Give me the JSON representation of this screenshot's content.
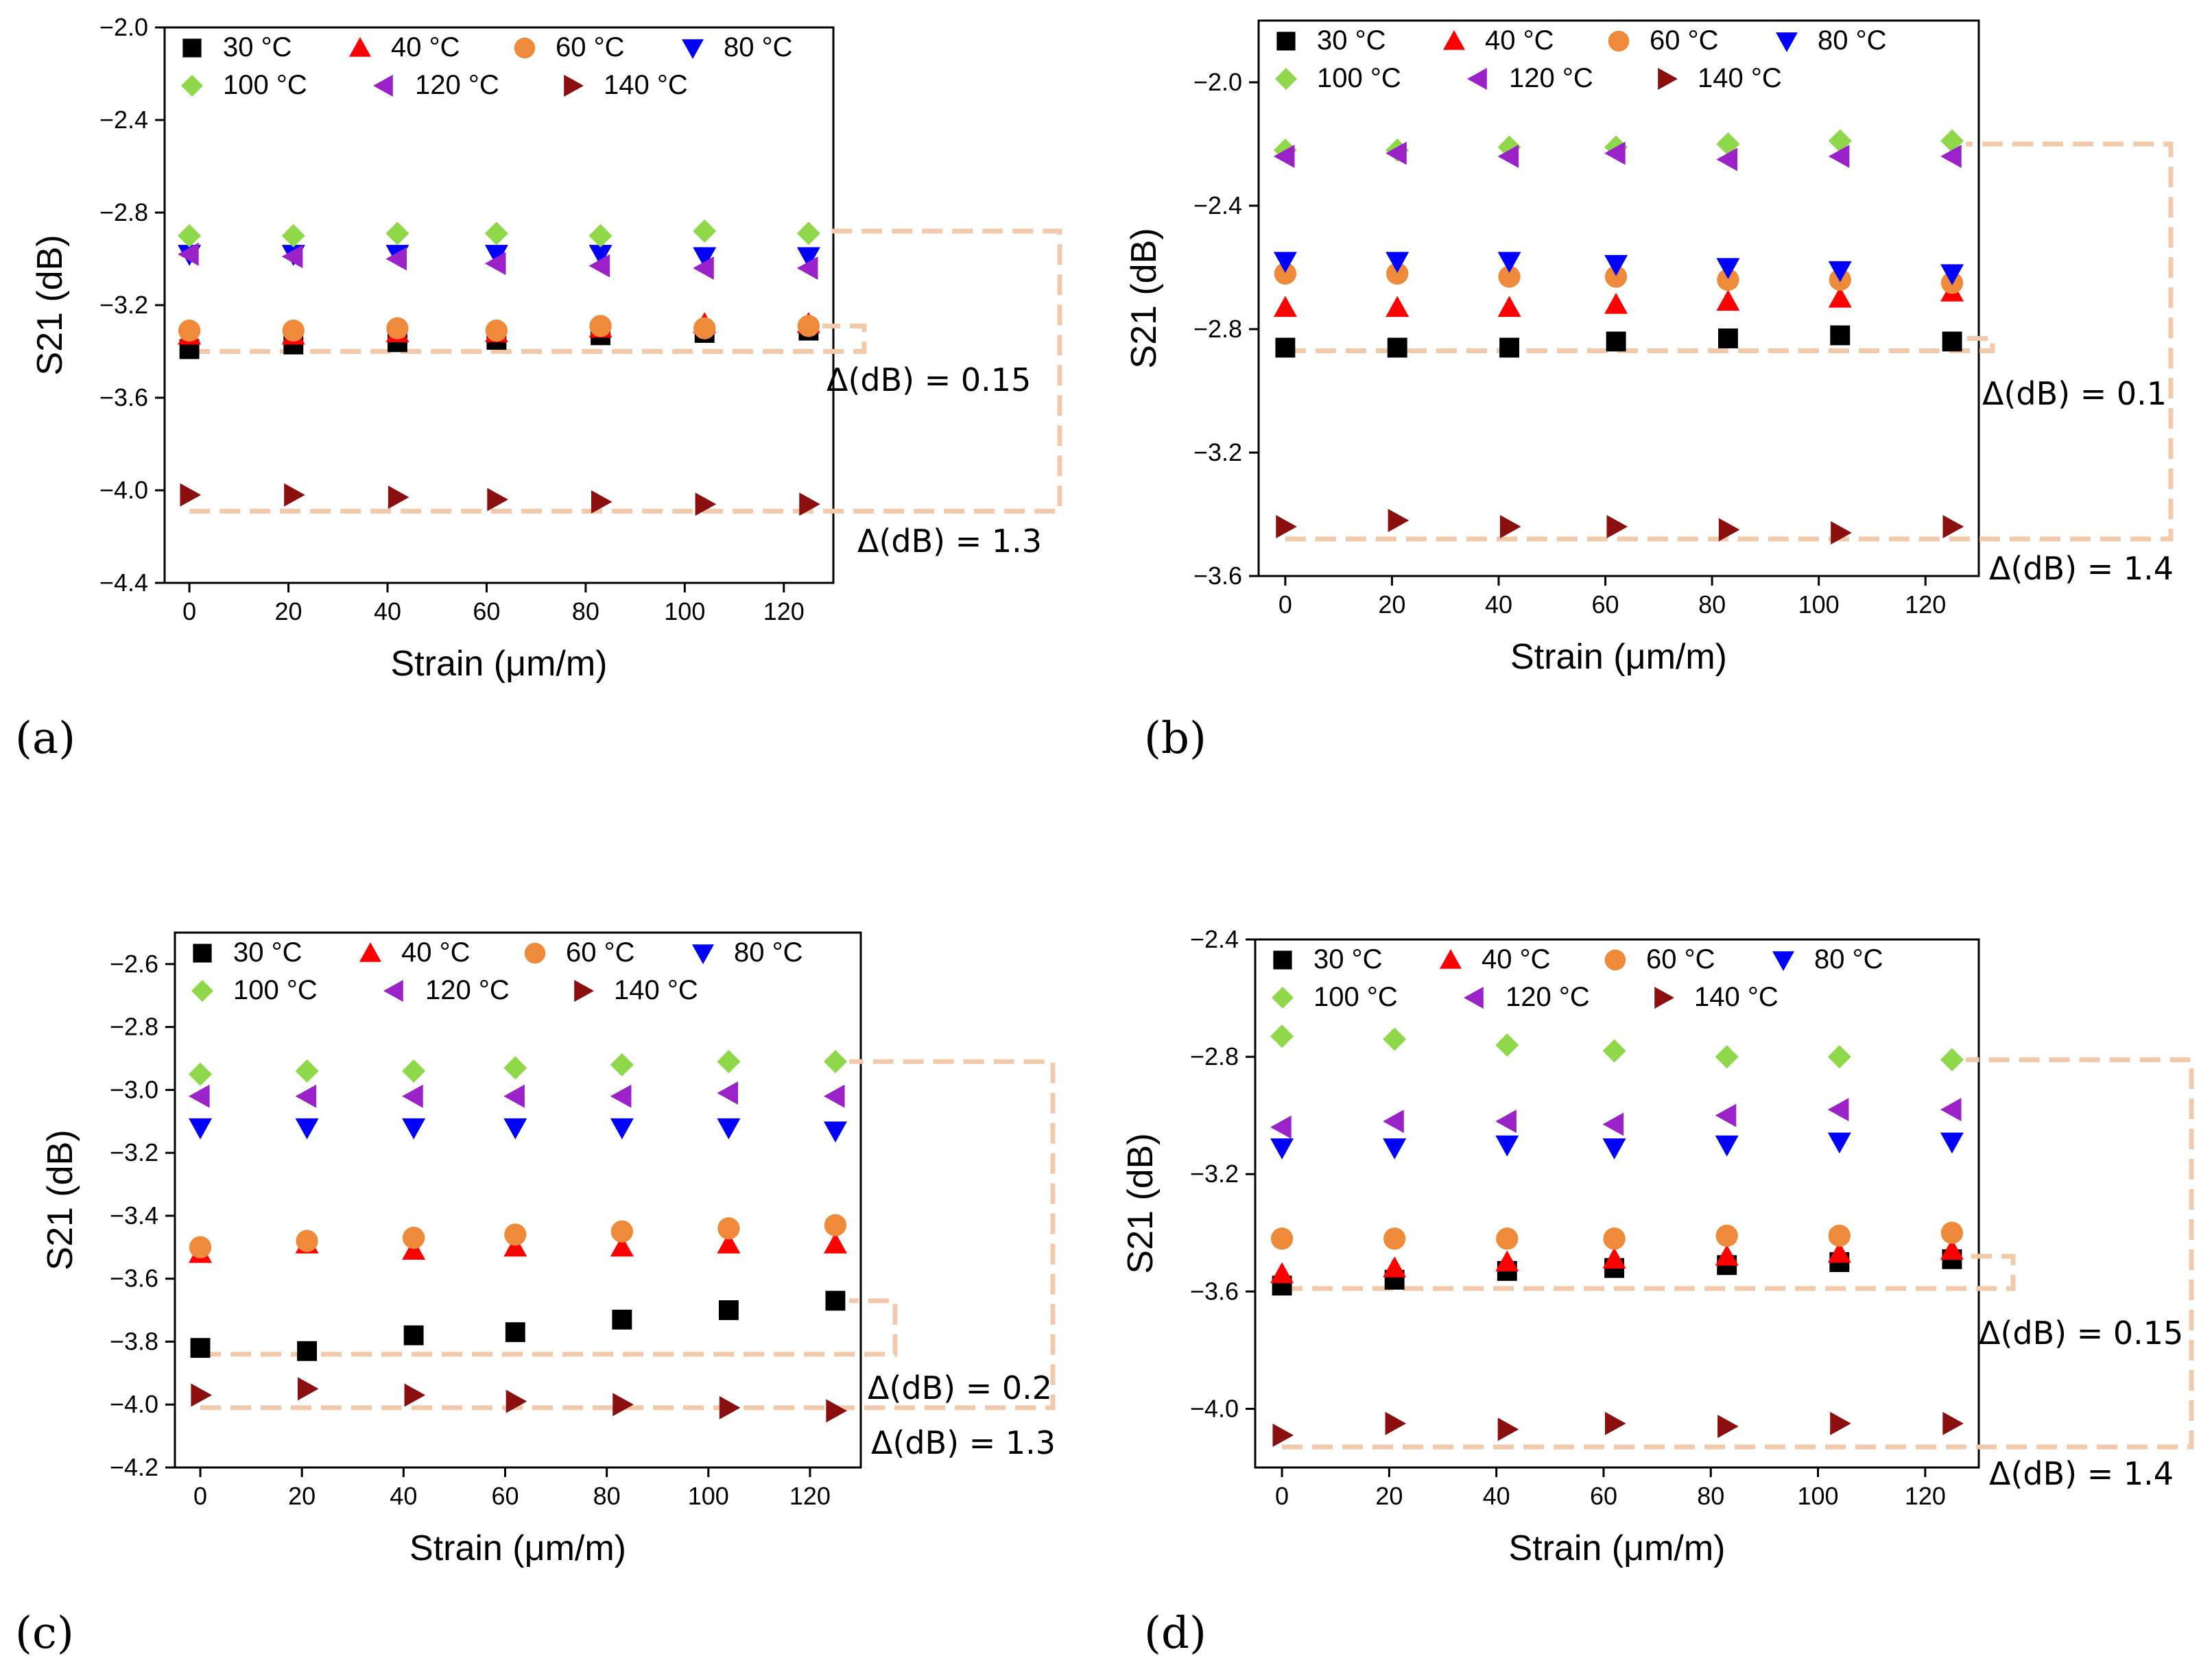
{
  "figure": {
    "panel_labels": [
      "(a)",
      "(b)",
      "(c)",
      "(d)"
    ]
  },
  "chart_data": [
    {
      "type": "scatter",
      "panel": "(a)",
      "xlabel": "Strain (μm/m)",
      "ylabel": "S21 (dB)",
      "xlim": [
        -5,
        130
      ],
      "ylim": [
        -4.4,
        -2.0
      ],
      "xticks": [
        0,
        20,
        40,
        60,
        80,
        100,
        120
      ],
      "yticks": [
        -4.4,
        -4.0,
        -3.6,
        -3.2,
        -2.8,
        -2.4,
        -2.0
      ],
      "ytick_labels": [
        "−4.4",
        "−4.0",
        "−3.6",
        "−3.2",
        "−2.8",
        "−2.4",
        "−2.0"
      ],
      "legend_position": "top",
      "x": [
        0,
        21,
        42,
        62,
        83,
        104,
        125
      ],
      "series": [
        {
          "name": "30 °C",
          "color": "#000000",
          "marker": "square",
          "values": [
            -3.39,
            -3.37,
            -3.36,
            -3.35,
            -3.33,
            -3.32,
            -3.31
          ]
        },
        {
          "name": "40 °C",
          "color": "#ff0000",
          "marker": "triangle-up",
          "values": [
            -3.33,
            -3.33,
            -3.32,
            -3.32,
            -3.3,
            -3.28,
            -3.28
          ]
        },
        {
          "name": "60 °C",
          "color": "#ef8a3a",
          "marker": "circle",
          "values": [
            -3.31,
            -3.31,
            -3.3,
            -3.31,
            -3.29,
            -3.3,
            -3.29
          ]
        },
        {
          "name": "80 °C",
          "color": "#0000ff",
          "marker": "triangle-down",
          "values": [
            -2.98,
            -2.98,
            -2.98,
            -2.98,
            -2.98,
            -2.99,
            -2.99
          ]
        },
        {
          "name": "100 °C",
          "color": "#8ed84a",
          "marker": "diamond",
          "values": [
            -2.9,
            -2.9,
            -2.89,
            -2.89,
            -2.9,
            -2.88,
            -2.89
          ]
        },
        {
          "name": "120 °C",
          "color": "#9a22c8",
          "marker": "triangle-left",
          "values": [
            -2.98,
            -2.99,
            -3.0,
            -3.02,
            -3.03,
            -3.04,
            -3.04
          ]
        },
        {
          "name": "140 °C",
          "color": "#8b0f0f",
          "marker": "triangle-right",
          "values": [
            -4.02,
            -4.02,
            -4.03,
            -4.04,
            -4.05,
            -4.06,
            -4.06
          ]
        }
      ],
      "annotations": [
        "Δ(dB) = 0.15",
        "Δ(dB) = 1.3"
      ],
      "bracket_small": [
        -3.4,
        -3.29
      ],
      "bracket_large": [
        -4.09,
        -2.88
      ]
    },
    {
      "type": "scatter",
      "panel": "(b)",
      "xlabel": "Strain (μm/m)",
      "ylabel": "S21 (dB)",
      "xlim": [
        -5,
        130
      ],
      "ylim": [
        -3.6,
        -1.8
      ],
      "xticks": [
        0,
        20,
        40,
        60,
        80,
        100,
        120
      ],
      "yticks": [
        -3.6,
        -3.2,
        -2.8,
        -2.4,
        -2.0
      ],
      "ytick_labels": [
        "−3.6",
        "−3.2",
        "−2.8",
        "−2.4",
        "−2.0"
      ],
      "legend_position": "top",
      "x": [
        0,
        21,
        42,
        62,
        83,
        104,
        125
      ],
      "series": [
        {
          "name": "30 °C",
          "color": "#000000",
          "marker": "square",
          "values": [
            -2.86,
            -2.86,
            -2.86,
            -2.84,
            -2.83,
            -2.82,
            -2.84
          ]
        },
        {
          "name": "40 °C",
          "color": "#ff0000",
          "marker": "triangle-up",
          "values": [
            -2.73,
            -2.73,
            -2.73,
            -2.72,
            -2.71,
            -2.7,
            -2.68
          ]
        },
        {
          "name": "60 °C",
          "color": "#ef8a3a",
          "marker": "circle",
          "values": [
            -2.62,
            -2.62,
            -2.63,
            -2.63,
            -2.64,
            -2.64,
            -2.65
          ]
        },
        {
          "name": "80 °C",
          "color": "#0000ff",
          "marker": "triangle-down",
          "values": [
            -2.58,
            -2.58,
            -2.58,
            -2.59,
            -2.6,
            -2.61,
            -2.62
          ]
        },
        {
          "name": "100 °C",
          "color": "#8ed84a",
          "marker": "diamond",
          "values": [
            -2.22,
            -2.22,
            -2.21,
            -2.21,
            -2.2,
            -2.19,
            -2.19
          ]
        },
        {
          "name": "120 °C",
          "color": "#9a22c8",
          "marker": "triangle-left",
          "values": [
            -2.24,
            -2.23,
            -2.24,
            -2.23,
            -2.25,
            -2.24,
            -2.24
          ]
        },
        {
          "name": "140 °C",
          "color": "#8b0f0f",
          "marker": "triangle-right",
          "values": [
            -3.44,
            -3.42,
            -3.44,
            -3.44,
            -3.45,
            -3.46,
            -3.44
          ]
        }
      ],
      "annotations": [
        "Δ(dB) = 0.1",
        "Δ(dB) = 1.4"
      ],
      "bracket_small": [
        -2.87,
        -2.83
      ],
      "bracket_large": [
        -3.48,
        -2.2
      ]
    },
    {
      "type": "scatter",
      "panel": "(c)",
      "xlabel": "Strain (μm/m)",
      "ylabel": "S21 (dB)",
      "xlim": [
        -5,
        130
      ],
      "ylim": [
        -4.2,
        -2.5
      ],
      "xticks": [
        0,
        20,
        40,
        60,
        80,
        100,
        120
      ],
      "yticks": [
        -4.2,
        -4.0,
        -3.8,
        -3.6,
        -3.4,
        -3.2,
        -3.0,
        -2.8,
        -2.6
      ],
      "ytick_labels": [
        "−4.2",
        "−4.0",
        "−3.8",
        "−3.6",
        "−3.4",
        "−3.2",
        "−3.0",
        "−2.8",
        "−2.6"
      ],
      "legend_position": "top",
      "x": [
        0,
        21,
        42,
        62,
        83,
        104,
        125
      ],
      "series": [
        {
          "name": "30 °C",
          "color": "#000000",
          "marker": "square",
          "values": [
            -3.82,
            -3.83,
            -3.78,
            -3.77,
            -3.73,
            -3.7,
            -3.67
          ]
        },
        {
          "name": "40 °C",
          "color": "#ff0000",
          "marker": "triangle-up",
          "values": [
            -3.52,
            -3.49,
            -3.51,
            -3.5,
            -3.5,
            -3.49,
            -3.49
          ]
        },
        {
          "name": "60 °C",
          "color": "#ef8a3a",
          "marker": "circle",
          "values": [
            -3.5,
            -3.48,
            -3.47,
            -3.46,
            -3.45,
            -3.44,
            -3.43
          ]
        },
        {
          "name": "80 °C",
          "color": "#0000ff",
          "marker": "triangle-down",
          "values": [
            -3.12,
            -3.12,
            -3.12,
            -3.12,
            -3.12,
            -3.12,
            -3.13
          ]
        },
        {
          "name": "100 °C",
          "color": "#8ed84a",
          "marker": "diamond",
          "values": [
            -2.95,
            -2.94,
            -2.94,
            -2.93,
            -2.92,
            -2.91,
            -2.91
          ]
        },
        {
          "name": "120 °C",
          "color": "#9a22c8",
          "marker": "triangle-left",
          "values": [
            -3.02,
            -3.02,
            -3.02,
            -3.02,
            -3.02,
            -3.01,
            -3.02
          ]
        },
        {
          "name": "140 °C",
          "color": "#8b0f0f",
          "marker": "triangle-right",
          "values": [
            -3.97,
            -3.95,
            -3.97,
            -3.99,
            -4.0,
            -4.01,
            -4.02
          ]
        }
      ],
      "annotations": [
        "Δ(dB) = 0.2",
        "Δ(dB) = 1.3"
      ],
      "bracket_small": [
        -3.84,
        -3.67
      ],
      "bracket_large": [
        -4.01,
        -2.91
      ]
    },
    {
      "type": "scatter",
      "panel": "(d)",
      "xlabel": "Strain (μm/m)",
      "ylabel": "S21 (dB)",
      "xlim": [
        -5,
        130
      ],
      "ylim": [
        -4.2,
        -2.4
      ],
      "xticks": [
        0,
        20,
        40,
        60,
        80,
        100,
        120
      ],
      "yticks": [
        -4.0,
        -3.6,
        -3.2,
        -2.8,
        -2.4
      ],
      "ytick_labels": [
        "−4.0",
        "−3.6",
        "−3.2",
        "−2.8",
        "−2.4"
      ],
      "legend_position": "top",
      "x": [
        0,
        21,
        42,
        62,
        83,
        104,
        125
      ],
      "series": [
        {
          "name": "30 °C",
          "color": "#000000",
          "marker": "square",
          "values": [
            -3.58,
            -3.56,
            -3.53,
            -3.52,
            -3.51,
            -3.5,
            -3.49
          ]
        },
        {
          "name": "40 °C",
          "color": "#ff0000",
          "marker": "triangle-up",
          "values": [
            -3.54,
            -3.52,
            -3.5,
            -3.49,
            -3.48,
            -3.47,
            -3.46
          ]
        },
        {
          "name": "60 °C",
          "color": "#ef8a3a",
          "marker": "circle",
          "values": [
            -3.42,
            -3.42,
            -3.42,
            -3.42,
            -3.41,
            -3.41,
            -3.4
          ]
        },
        {
          "name": "80 °C",
          "color": "#0000ff",
          "marker": "triangle-down",
          "values": [
            -3.11,
            -3.11,
            -3.1,
            -3.11,
            -3.1,
            -3.09,
            -3.09
          ]
        },
        {
          "name": "100 °C",
          "color": "#8ed84a",
          "marker": "diamond",
          "values": [
            -2.73,
            -2.74,
            -2.76,
            -2.78,
            -2.8,
            -2.8,
            -2.81
          ]
        },
        {
          "name": "120 °C",
          "color": "#9a22c8",
          "marker": "triangle-left",
          "values": [
            -3.04,
            -3.02,
            -3.02,
            -3.03,
            -3.0,
            -2.98,
            -2.98
          ]
        },
        {
          "name": "140 °C",
          "color": "#8b0f0f",
          "marker": "triangle-right",
          "values": [
            -4.09,
            -4.05,
            -4.07,
            -4.05,
            -4.06,
            -4.05,
            -4.05
          ]
        }
      ],
      "annotations": [
        "Δ(dB) = 0.15",
        "Δ(dB) = 1.4"
      ],
      "bracket_small": [
        -3.59,
        -3.48
      ],
      "bracket_large": [
        -4.13,
        -2.81
      ]
    }
  ]
}
